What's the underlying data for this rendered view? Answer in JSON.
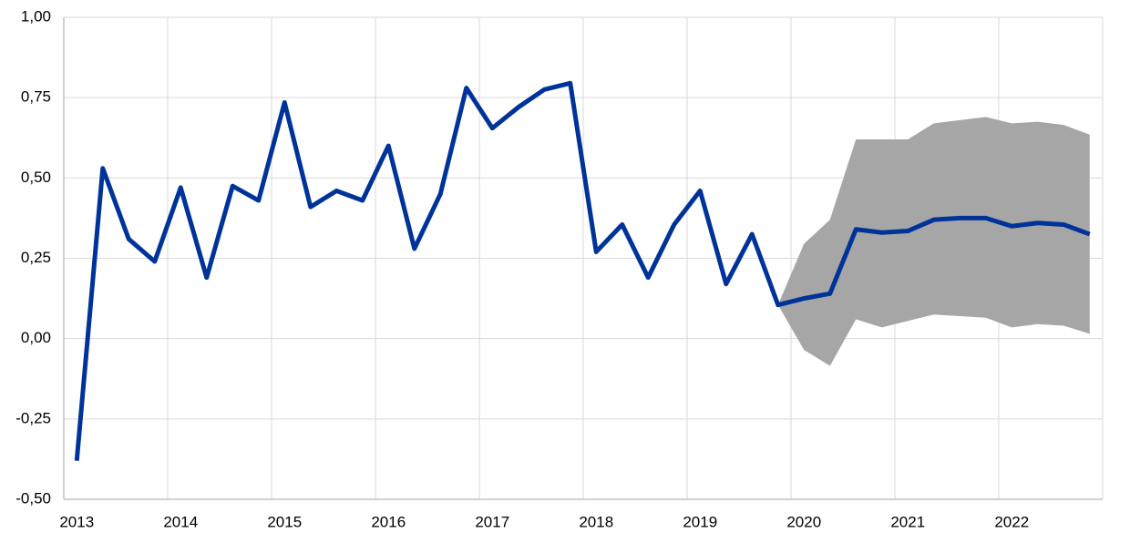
{
  "chart_data": {
    "type": "line",
    "categories": [
      "2013",
      null,
      null,
      null,
      "2014",
      null,
      null,
      null,
      "2015",
      null,
      null,
      null,
      "2016",
      null,
      null,
      null,
      "2017",
      null,
      null,
      null,
      "2018",
      null,
      null,
      null,
      "2019",
      null,
      null,
      null,
      "2020",
      null,
      null,
      null,
      "2021",
      null,
      null,
      null,
      "2022",
      null,
      null,
      null
    ],
    "values": [
      -0.38,
      0.53,
      0.31,
      0.24,
      0.47,
      0.19,
      0.475,
      0.43,
      0.735,
      0.41,
      0.46,
      0.43,
      0.6,
      0.28,
      0.45,
      0.78,
      0.655,
      0.72,
      0.775,
      0.795,
      0.27,
      0.355,
      0.19,
      0.355,
      0.46,
      0.17,
      0.325,
      0.105,
      0.125,
      0.14,
      0.34,
      0.33,
      0.335,
      0.37,
      0.375,
      0.375,
      0.35,
      0.36,
      0.355,
      0.325
    ],
    "color": "#003399",
    "band": {
      "color": "#a6a6a6",
      "upper": [
        null,
        null,
        null,
        null,
        null,
        null,
        null,
        null,
        null,
        null,
        null,
        null,
        null,
        null,
        null,
        null,
        null,
        null,
        null,
        null,
        null,
        null,
        null,
        null,
        null,
        null,
        null,
        0.105,
        0.295,
        0.37,
        0.62,
        0.62,
        0.62,
        0.67,
        0.68,
        0.69,
        0.67,
        0.675,
        0.665,
        0.635
      ],
      "lower": [
        null,
        null,
        null,
        null,
        null,
        null,
        null,
        null,
        null,
        null,
        null,
        null,
        null,
        null,
        null,
        null,
        null,
        null,
        null,
        null,
        null,
        null,
        null,
        null,
        null,
        null,
        null,
        0.105,
        -0.035,
        -0.085,
        0.06,
        0.035,
        0.055,
        0.075,
        0.07,
        0.065,
        0.035,
        0.045,
        0.04,
        0.015
      ]
    },
    "ylim": [
      -0.5,
      1.0
    ],
    "yticks": [
      {
        "value": -0.5,
        "label": "-0,50"
      },
      {
        "value": -0.25,
        "label": "-0,25"
      },
      {
        "value": 0,
        "label": "0,00"
      },
      {
        "value": 0.25,
        "label": "0,25"
      },
      {
        "value": 0.5,
        "label": "0,50"
      },
      {
        "value": 0.75,
        "label": "0,75"
      },
      {
        "value": 1.0,
        "label": "1,00"
      }
    ],
    "grid": true
  }
}
